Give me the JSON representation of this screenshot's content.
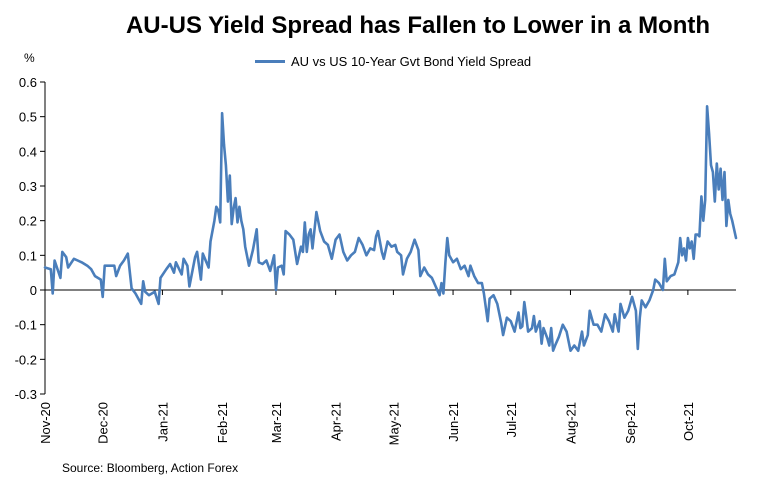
{
  "chart_data": {
    "type": "line",
    "title": "AU-US Yield Spread has Fallen to Lower in a Month",
    "ylabel": "%",
    "xlabel": "",
    "ylim": [
      -0.3,
      0.6
    ],
    "yticks": [
      -0.3,
      -0.2,
      -0.1,
      0,
      0.1,
      0.2,
      0.3,
      0.4,
      0.5,
      0.6
    ],
    "ytick_labels": [
      "-0.3",
      "-0.2",
      "-0.1",
      "0",
      "0.1",
      "0.2",
      "0.3",
      "0.4",
      "0.5",
      "0.6"
    ],
    "x_range": [
      "2020-11-01",
      "2021-10-26"
    ],
    "x_ticks": [
      {
        "date": "2020-11-01",
        "label": "Nov-20"
      },
      {
        "date": "2020-12-01",
        "label": "Dec-20"
      },
      {
        "date": "2021-01-01",
        "label": "Jan-21"
      },
      {
        "date": "2021-02-01",
        "label": "Feb-21"
      },
      {
        "date": "2021-03-01",
        "label": "Mar-21"
      },
      {
        "date": "2021-04-01",
        "label": "Apr-21"
      },
      {
        "date": "2021-05-01",
        "label": "May-21"
      },
      {
        "date": "2021-06-01",
        "label": "Jun-21"
      },
      {
        "date": "2021-07-01",
        "label": "Jul-21"
      },
      {
        "date": "2021-08-01",
        "label": "Aug-21"
      },
      {
        "date": "2021-09-01",
        "label": "Sep-21"
      },
      {
        "date": "2021-10-01",
        "label": "Oct-21"
      }
    ],
    "legend": "top-center",
    "grid": false,
    "series": [
      {
        "name": "AU vs US 10-Year Gvt Bond Yield Spread",
        "color": "#4a7ebb",
        "points": [
          [
            "2020-11-01",
            0.065
          ],
          [
            "2020-11-04",
            0.06
          ],
          [
            "2020-11-05",
            -0.01
          ],
          [
            "2020-11-06",
            0.085
          ],
          [
            "2020-11-09",
            0.035
          ],
          [
            "2020-11-10",
            0.11
          ],
          [
            "2020-11-12",
            0.095
          ],
          [
            "2020-11-13",
            0.065
          ],
          [
            "2020-11-16",
            0.09
          ],
          [
            "2020-11-18",
            0.085
          ],
          [
            "2020-11-20",
            0.08
          ],
          [
            "2020-11-23",
            0.07
          ],
          [
            "2020-11-25",
            0.06
          ],
          [
            "2020-11-27",
            0.04
          ],
          [
            "2020-11-30",
            0.03
          ],
          [
            "2020-12-01",
            -0.02
          ],
          [
            "2020-12-02",
            0.07
          ],
          [
            "2020-12-04",
            0.07
          ],
          [
            "2020-12-07",
            0.07
          ],
          [
            "2020-12-08",
            0.04
          ],
          [
            "2020-12-10",
            0.07
          ],
          [
            "2020-12-12",
            0.085
          ],
          [
            "2020-12-14",
            0.105
          ],
          [
            "2020-12-16",
            0.005
          ],
          [
            "2020-12-18",
            -0.01
          ],
          [
            "2020-12-21",
            -0.04
          ],
          [
            "2020-12-22",
            0.025
          ],
          [
            "2020-12-23",
            -0.005
          ],
          [
            "2020-12-25",
            -0.015
          ],
          [
            "2020-12-28",
            -0.005
          ],
          [
            "2020-12-30",
            -0.04
          ],
          [
            "2020-12-31",
            0.035
          ],
          [
            "2021-01-03",
            0.06
          ],
          [
            "2021-01-05",
            0.075
          ],
          [
            "2021-01-07",
            0.05
          ],
          [
            "2021-01-08",
            0.08
          ],
          [
            "2021-01-11",
            0.045
          ],
          [
            "2021-01-12",
            0.09
          ],
          [
            "2021-01-14",
            0.07
          ],
          [
            "2021-01-15",
            0.01
          ],
          [
            "2021-01-18",
            0.095
          ],
          [
            "2021-01-19",
            0.11
          ],
          [
            "2021-01-21",
            0.03
          ],
          [
            "2021-01-22",
            0.105
          ],
          [
            "2021-01-25",
            0.065
          ],
          [
            "2021-01-26",
            0.14
          ],
          [
            "2021-01-28",
            0.2
          ],
          [
            "2021-01-29",
            0.24
          ],
          [
            "2021-01-30",
            0.23
          ],
          [
            "2021-01-31",
            0.195
          ],
          [
            "2021-02-01",
            0.51
          ],
          [
            "2021-02-02",
            0.42
          ],
          [
            "2021-02-03",
            0.36
          ],
          [
            "2021-02-04",
            0.255
          ],
          [
            "2021-02-05",
            0.33
          ],
          [
            "2021-02-06",
            0.19
          ],
          [
            "2021-02-07",
            0.235
          ],
          [
            "2021-02-08",
            0.265
          ],
          [
            "2021-02-09",
            0.195
          ],
          [
            "2021-02-10",
            0.24
          ],
          [
            "2021-02-11",
            0.2
          ],
          [
            "2021-02-12",
            0.175
          ],
          [
            "2021-02-13",
            0.125
          ],
          [
            "2021-02-15",
            0.07
          ],
          [
            "2021-02-17",
            0.115
          ],
          [
            "2021-02-19",
            0.175
          ],
          [
            "2021-02-20",
            0.08
          ],
          [
            "2021-02-22",
            0.075
          ],
          [
            "2021-02-24",
            0.085
          ],
          [
            "2021-02-26",
            0.055
          ],
          [
            "2021-02-28",
            0.1
          ],
          [
            "2021-03-01",
            0.0
          ],
          [
            "2021-03-02",
            0.065
          ],
          [
            "2021-03-04",
            0.07
          ],
          [
            "2021-03-05",
            0.045
          ],
          [
            "2021-03-06",
            0.17
          ],
          [
            "2021-03-08",
            0.16
          ],
          [
            "2021-03-10",
            0.145
          ],
          [
            "2021-03-12",
            0.075
          ],
          [
            "2021-03-14",
            0.125
          ],
          [
            "2021-03-15",
            0.11
          ],
          [
            "2021-03-16",
            0.195
          ],
          [
            "2021-03-17",
            0.11
          ],
          [
            "2021-03-18",
            0.16
          ],
          [
            "2021-03-19",
            0.175
          ],
          [
            "2021-03-20",
            0.12
          ],
          [
            "2021-03-22",
            0.225
          ],
          [
            "2021-03-24",
            0.17
          ],
          [
            "2021-03-26",
            0.14
          ],
          [
            "2021-03-28",
            0.13
          ],
          [
            "2021-03-30",
            0.09
          ],
          [
            "2021-04-01",
            0.145
          ],
          [
            "2021-04-03",
            0.16
          ],
          [
            "2021-04-05",
            0.11
          ],
          [
            "2021-04-07",
            0.085
          ],
          [
            "2021-04-09",
            0.1
          ],
          [
            "2021-04-11",
            0.11
          ],
          [
            "2021-04-13",
            0.15
          ],
          [
            "2021-04-15",
            0.13
          ],
          [
            "2021-04-17",
            0.1
          ],
          [
            "2021-04-19",
            0.12
          ],
          [
            "2021-04-21",
            0.115
          ],
          [
            "2021-04-22",
            0.155
          ],
          [
            "2021-04-23",
            0.17
          ],
          [
            "2021-04-24",
            0.14
          ],
          [
            "2021-04-25",
            0.11
          ],
          [
            "2021-04-26",
            0.09
          ],
          [
            "2021-04-28",
            0.14
          ],
          [
            "2021-04-30",
            0.125
          ],
          [
            "2021-05-02",
            0.13
          ],
          [
            "2021-05-03",
            0.11
          ],
          [
            "2021-05-05",
            0.1
          ],
          [
            "2021-05-06",
            0.045
          ],
          [
            "2021-05-08",
            0.09
          ],
          [
            "2021-05-10",
            0.11
          ],
          [
            "2021-05-12",
            0.145
          ],
          [
            "2021-05-14",
            0.115
          ],
          [
            "2021-05-15",
            0.04
          ],
          [
            "2021-05-17",
            0.065
          ],
          [
            "2021-05-19",
            0.045
          ],
          [
            "2021-05-21",
            0.035
          ],
          [
            "2021-05-23",
            0.01
          ],
          [
            "2021-05-25",
            -0.015
          ],
          [
            "2021-05-26",
            0.02
          ],
          [
            "2021-05-27",
            -0.01
          ],
          [
            "2021-05-28",
            0.08
          ],
          [
            "2021-05-29",
            0.15
          ],
          [
            "2021-05-30",
            0.1
          ],
          [
            "2021-06-01",
            0.08
          ],
          [
            "2021-06-03",
            0.09
          ],
          [
            "2021-06-05",
            0.06
          ],
          [
            "2021-06-07",
            0.07
          ],
          [
            "2021-06-09",
            0.04
          ],
          [
            "2021-06-10",
            0.07
          ],
          [
            "2021-06-12",
            0.04
          ],
          [
            "2021-06-14",
            0.02
          ],
          [
            "2021-06-16",
            0.02
          ],
          [
            "2021-06-17",
            -0.01
          ],
          [
            "2021-06-18",
            -0.05
          ],
          [
            "2021-06-19",
            -0.09
          ],
          [
            "2021-06-20",
            -0.025
          ],
          [
            "2021-06-22",
            -0.015
          ],
          [
            "2021-06-24",
            -0.04
          ],
          [
            "2021-06-26",
            -0.095
          ],
          [
            "2021-06-27",
            -0.13
          ],
          [
            "2021-06-29",
            -0.08
          ],
          [
            "2021-07-01",
            -0.09
          ],
          [
            "2021-07-03",
            -0.12
          ],
          [
            "2021-07-05",
            -0.065
          ],
          [
            "2021-07-06",
            -0.11
          ],
          [
            "2021-07-07",
            -0.105
          ],
          [
            "2021-07-08",
            -0.035
          ],
          [
            "2021-07-09",
            -0.075
          ],
          [
            "2021-07-10",
            -0.12
          ],
          [
            "2021-07-12",
            -0.11
          ],
          [
            "2021-07-13",
            -0.075
          ],
          [
            "2021-07-14",
            -0.12
          ],
          [
            "2021-07-16",
            -0.09
          ],
          [
            "2021-07-17",
            -0.155
          ],
          [
            "2021-07-18",
            -0.11
          ],
          [
            "2021-07-20",
            -0.14
          ],
          [
            "2021-07-21",
            -0.16
          ],
          [
            "2021-07-22",
            -0.11
          ],
          [
            "2021-07-23",
            -0.175
          ],
          [
            "2021-07-24",
            -0.16
          ],
          [
            "2021-07-26",
            -0.135
          ],
          [
            "2021-07-28",
            -0.1
          ],
          [
            "2021-07-30",
            -0.12
          ],
          [
            "2021-08-01",
            -0.175
          ],
          [
            "2021-08-03",
            -0.16
          ],
          [
            "2021-08-05",
            -0.175
          ],
          [
            "2021-08-07",
            -0.12
          ],
          [
            "2021-08-08",
            -0.16
          ],
          [
            "2021-08-10",
            -0.13
          ],
          [
            "2021-08-11",
            -0.06
          ],
          [
            "2021-08-13",
            -0.1
          ],
          [
            "2021-08-15",
            -0.1
          ],
          [
            "2021-08-17",
            -0.12
          ],
          [
            "2021-08-19",
            -0.07
          ],
          [
            "2021-08-21",
            -0.09
          ],
          [
            "2021-08-23",
            -0.12
          ],
          [
            "2021-08-24",
            -0.07
          ],
          [
            "2021-08-26",
            -0.12
          ],
          [
            "2021-08-27",
            -0.04
          ],
          [
            "2021-08-29",
            -0.08
          ],
          [
            "2021-08-31",
            -0.06
          ],
          [
            "2021-09-02",
            -0.02
          ],
          [
            "2021-09-04",
            -0.06
          ],
          [
            "2021-09-05",
            -0.17
          ],
          [
            "2021-09-06",
            -0.08
          ],
          [
            "2021-09-07",
            -0.03
          ],
          [
            "2021-09-09",
            -0.05
          ],
          [
            "2021-09-11",
            -0.03
          ],
          [
            "2021-09-13",
            0.0
          ],
          [
            "2021-09-14",
            0.03
          ],
          [
            "2021-09-16",
            0.02
          ],
          [
            "2021-09-18",
            0.0
          ],
          [
            "2021-09-19",
            0.09
          ],
          [
            "2021-09-20",
            0.025
          ],
          [
            "2021-09-22",
            0.04
          ],
          [
            "2021-09-24",
            0.045
          ],
          [
            "2021-09-26",
            0.08
          ],
          [
            "2021-09-27",
            0.15
          ],
          [
            "2021-09-28",
            0.1
          ],
          [
            "2021-09-29",
            0.12
          ],
          [
            "2021-09-30",
            0.085
          ],
          [
            "2021-10-01",
            0.15
          ],
          [
            "2021-10-02",
            0.12
          ],
          [
            "2021-10-03",
            0.14
          ],
          [
            "2021-10-04",
            0.09
          ],
          [
            "2021-10-05",
            0.16
          ],
          [
            "2021-10-06",
            0.16
          ],
          [
            "2021-10-07",
            0.155
          ],
          [
            "2021-10-08",
            0.27
          ],
          [
            "2021-10-09",
            0.2
          ],
          [
            "2021-10-10",
            0.26
          ],
          [
            "2021-10-11",
            0.53
          ],
          [
            "2021-10-12",
            0.45
          ],
          [
            "2021-10-13",
            0.36
          ],
          [
            "2021-10-14",
            0.34
          ],
          [
            "2021-10-15",
            0.255
          ],
          [
            "2021-10-16",
            0.365
          ],
          [
            "2021-10-17",
            0.29
          ],
          [
            "2021-10-18",
            0.35
          ],
          [
            "2021-10-19",
            0.26
          ],
          [
            "2021-10-20",
            0.34
          ],
          [
            "2021-10-21",
            0.185
          ],
          [
            "2021-10-22",
            0.26
          ],
          [
            "2021-10-23",
            0.22
          ],
          [
            "2021-10-24",
            0.2
          ],
          [
            "2021-10-26",
            0.15
          ]
        ]
      }
    ]
  },
  "source": "Source: Bloomberg, Action Forex"
}
